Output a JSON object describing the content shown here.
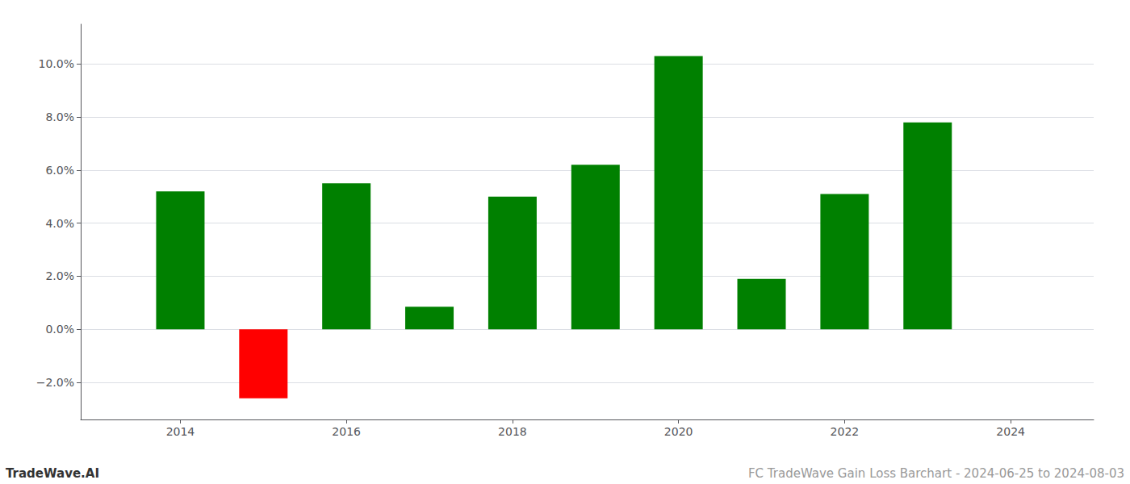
{
  "chart_data": {
    "type": "bar",
    "x": [
      2014,
      2015,
      2016,
      2017,
      2018,
      2019,
      2020,
      2021,
      2022,
      2023
    ],
    "values": [
      0.052,
      -0.026,
      0.055,
      0.0085,
      0.05,
      0.062,
      0.103,
      0.019,
      0.051,
      0.078
    ],
    "colors": [
      "#008000",
      "#ff0000",
      "#008000",
      "#008000",
      "#008000",
      "#008000",
      "#008000",
      "#008000",
      "#008000",
      "#008000"
    ],
    "xlim": [
      2012.8,
      2025.0
    ],
    "xticks": [
      2014,
      2016,
      2018,
      2020,
      2022,
      2024
    ],
    "ylim": [
      -0.034,
      0.115
    ],
    "yticks": [
      {
        "value": -0.02,
        "label": "−2.0%"
      },
      {
        "value": 0.0,
        "label": "0.0%"
      },
      {
        "value": 0.02,
        "label": "2.0%"
      },
      {
        "value": 0.04,
        "label": "4.0%"
      },
      {
        "value": 0.06,
        "label": "6.0%"
      },
      {
        "value": 0.08,
        "label": "8.0%"
      },
      {
        "value": 0.1,
        "label": "10.0%"
      }
    ],
    "grid": true,
    "annotations": [
      "TradeWave.AI",
      "FC TradeWave Gain Loss Barchart - 2024-06-25 to 2024-08-03"
    ]
  }
}
